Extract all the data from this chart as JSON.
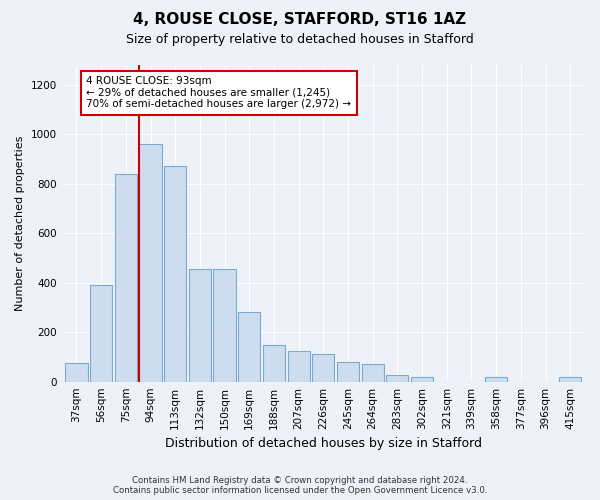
{
  "title": "4, ROUSE CLOSE, STAFFORD, ST16 1AZ",
  "subtitle": "Size of property relative to detached houses in Stafford",
  "xlabel": "Distribution of detached houses by size in Stafford",
  "ylabel": "Number of detached properties",
  "categories": [
    "37sqm",
    "56sqm",
    "75sqm",
    "94sqm",
    "113sqm",
    "132sqm",
    "150sqm",
    "169sqm",
    "188sqm",
    "207sqm",
    "226sqm",
    "245sqm",
    "264sqm",
    "283sqm",
    "302sqm",
    "321sqm",
    "339sqm",
    "358sqm",
    "377sqm",
    "396sqm",
    "415sqm"
  ],
  "values": [
    75,
    390,
    840,
    960,
    870,
    455,
    455,
    280,
    150,
    125,
    110,
    80,
    70,
    25,
    20,
    0,
    0,
    20,
    0,
    0,
    20
  ],
  "bar_color": "#cddcee",
  "bar_edge_color": "#7aaacf",
  "property_line_color": "#cc0000",
  "annotation_text": "4 ROUSE CLOSE: 93sqm\n← 29% of detached houses are smaller (1,245)\n70% of semi-detached houses are larger (2,972) →",
  "annotation_box_color": "#ffffff",
  "annotation_box_edge": "#cc0000",
  "ylim": [
    0,
    1280
  ],
  "yticks": [
    0,
    200,
    400,
    600,
    800,
    1000,
    1200
  ],
  "footnote": "Contains HM Land Registry data © Crown copyright and database right 2024.\nContains public sector information licensed under the Open Government Licence v3.0.",
  "bg_color": "#eef2f8",
  "plot_bg_color": "#eef2f8",
  "grid_color": "#ffffff",
  "title_fontsize": 11,
  "subtitle_fontsize": 9,
  "tick_fontsize": 7.5,
  "ylabel_fontsize": 8,
  "xlabel_fontsize": 9
}
